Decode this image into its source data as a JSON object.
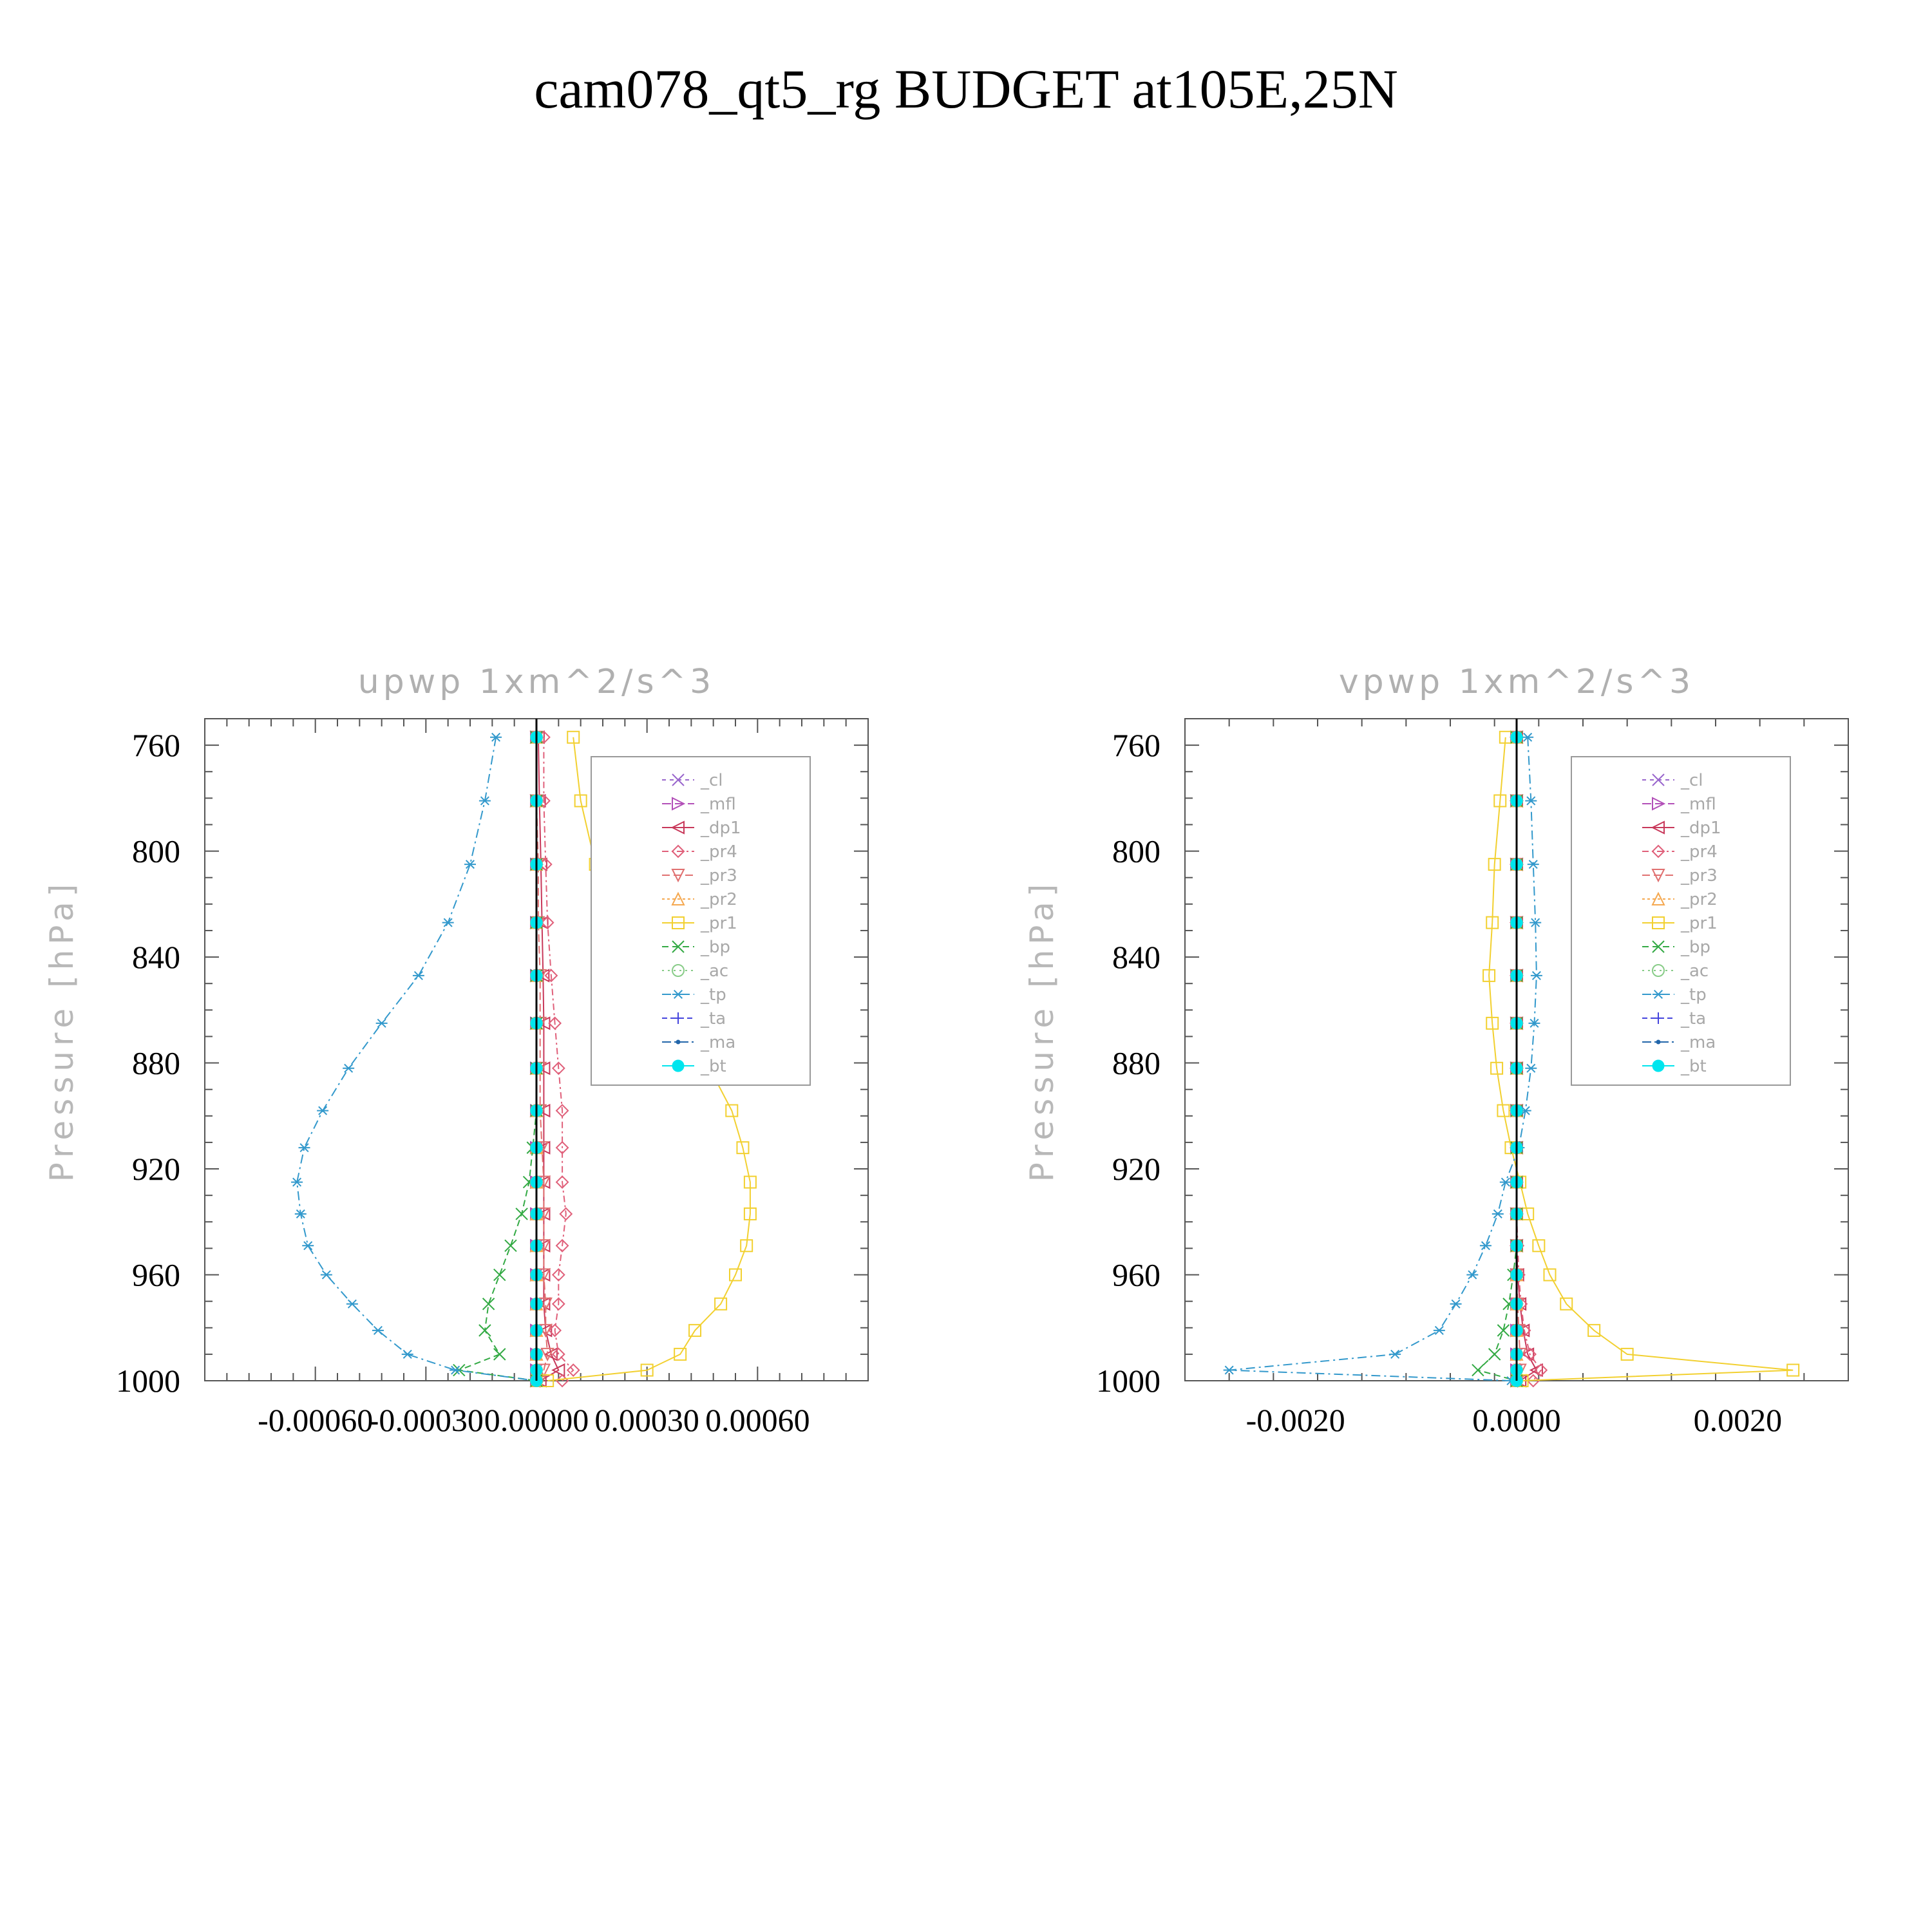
{
  "title": "cam078_qt5_rg  BUDGET at105E,25N",
  "colors": {
    "cl": "#9966cc",
    "mfl": "#b24fb8",
    "dp1": "#c8385a",
    "pr4": "#e0607a",
    "pr3": "#e07070",
    "pr2": "#f5a850",
    "pr1": "#f2d030",
    "bp": "#33aa44",
    "ac": "#88cc88",
    "tp": "#3399cc",
    "ta": "#4444dd",
    "ma": "#2266aa",
    "bt": "#00e5ee"
  },
  "chart_data": [
    {
      "type": "line",
      "title": "upwp   1xm^2/s^3",
      "ylabel": "Pressure  [hPa]",
      "xlabel": "",
      "ylim": [
        1000,
        750
      ],
      "xlim": [
        -0.0009,
        0.0009
      ],
      "yticks": [
        760,
        800,
        840,
        880,
        920,
        960,
        1000
      ],
      "yticklabels": [
        "760",
        "800",
        "840",
        "880",
        "920",
        "960",
        "1000"
      ],
      "xticks": [
        -0.0006,
        -0.0003,
        0.0,
        0.0003,
        0.0006
      ],
      "xticklabels": [
        "-0.00060",
        "-0.00030",
        "0.00000",
        "0.00030",
        "0.00060"
      ],
      "legend_position": "top-right",
      "y": [
        757,
        781,
        805,
        827,
        847,
        865,
        882,
        898,
        912,
        925,
        937,
        949,
        960,
        971,
        981,
        990,
        996,
        1000
      ],
      "series": [
        {
          "name": "_cl",
          "key": "cl",
          "marker": "x",
          "values": [
            0,
            0,
            0,
            0,
            0,
            0,
            0,
            0,
            0,
            0,
            0,
            0,
            0,
            0,
            0,
            0,
            0,
            0
          ]
        },
        {
          "name": "_mfl",
          "key": "mfl",
          "marker": "tri-right",
          "values": [
            0,
            0,
            0,
            0,
            0,
            0,
            0,
            0,
            0,
            0,
            0,
            0,
            0,
            0,
            0,
            0,
            0,
            0
          ]
        },
        {
          "name": "_dp1",
          "key": "dp1",
          "marker": "tri-left",
          "values": [
            5e-06,
            8e-06,
            1.2e-05,
            1.5e-05,
            1.8e-05,
            2e-05,
            2e-05,
            2e-05,
            2e-05,
            2e-05,
            2e-05,
            2e-05,
            2e-05,
            2e-05,
            2.5e-05,
            4e-05,
            6e-05,
            1e-05
          ]
        },
        {
          "name": "_pr4",
          "key": "pr4",
          "marker": "diamond",
          "values": [
            2e-05,
            2e-05,
            2.5e-05,
            3e-05,
            4e-05,
            5e-05,
            6e-05,
            7e-05,
            7e-05,
            7e-05,
            8e-05,
            7e-05,
            6e-05,
            6e-05,
            5e-05,
            6e-05,
            0.0001,
            7e-05
          ]
        },
        {
          "name": "_pr3",
          "key": "pr3",
          "marker": "tri-down",
          "values": [
            0,
            0,
            5e-06,
            5e-06,
            1e-05,
            1e-05,
            1e-05,
            1e-05,
            1.5e-05,
            2e-05,
            2e-05,
            2e-05,
            2e-05,
            2.5e-05,
            2.5e-05,
            3e-05,
            2e-05,
            1e-05
          ]
        },
        {
          "name": "_pr2",
          "key": "pr2",
          "marker": "tri-up",
          "values": [
            0,
            0,
            0,
            0,
            0,
            0,
            0,
            0,
            0,
            0,
            0,
            0,
            0,
            0,
            0,
            0,
            0,
            0
          ]
        },
        {
          "name": "_pr1",
          "key": "pr1",
          "marker": "square",
          "values": [
            0.0001,
            0.00012,
            0.00016,
            0.00023,
            0.0003,
            0.00039,
            0.00047,
            0.00053,
            0.00056,
            0.00058,
            0.00058,
            0.00057,
            0.00054,
            0.0005,
            0.00043,
            0.00039,
            0.0003,
            3e-05
          ]
        },
        {
          "name": "_bp",
          "key": "bp",
          "marker": "x",
          "values": [
            0,
            0,
            0,
            0,
            0,
            0,
            0,
            0,
            -1e-05,
            -2e-05,
            -4e-05,
            -7e-05,
            -0.0001,
            -0.00013,
            -0.00014,
            -0.0001,
            -0.00021,
            0
          ]
        },
        {
          "name": "_ac",
          "key": "ac",
          "marker": "circle",
          "values": [
            0,
            0,
            0,
            0,
            0,
            0,
            0,
            0,
            0,
            0,
            0,
            0,
            0,
            0,
            0,
            0,
            0,
            0
          ]
        },
        {
          "name": "_tp",
          "key": "tp",
          "marker": "star",
          "values": [
            -0.00011,
            -0.00014,
            -0.00018,
            -0.00024,
            -0.00032,
            -0.00042,
            -0.00051,
            -0.00058,
            -0.00063,
            -0.00065,
            -0.00064,
            -0.00062,
            -0.00057,
            -0.0005,
            -0.00043,
            -0.00035,
            -0.00022,
            0
          ]
        },
        {
          "name": "_ta",
          "key": "ta",
          "marker": "plus",
          "values": [
            0,
            0,
            0,
            0,
            0,
            0,
            0,
            0,
            0,
            0,
            0,
            0,
            0,
            0,
            0,
            0,
            0,
            0
          ]
        },
        {
          "name": "_ma",
          "key": "ma",
          "marker": "dot",
          "values": [
            0,
            0,
            0,
            0,
            0,
            0,
            0,
            0,
            0,
            0,
            0,
            0,
            0,
            0,
            0,
            0,
            0,
            0
          ]
        },
        {
          "name": "_bt",
          "key": "bt",
          "marker": "filled-circle",
          "values": [
            0,
            0,
            0,
            0,
            0,
            0,
            0,
            0,
            0,
            0,
            0,
            0,
            0,
            0,
            0,
            0,
            0,
            0
          ]
        }
      ]
    },
    {
      "type": "line",
      "title": "vpwp   1xm^2/s^3",
      "ylabel": "Pressure  [hPa]",
      "xlabel": "",
      "ylim": [
        1000,
        750
      ],
      "xlim": [
        -0.003,
        0.003
      ],
      "yticks": [
        760,
        800,
        840,
        880,
        920,
        960,
        1000
      ],
      "yticklabels": [
        "760",
        "800",
        "840",
        "880",
        "920",
        "960",
        "1000"
      ],
      "xticks": [
        -0.002,
        0.0,
        0.002
      ],
      "xticklabels": [
        "-0.0020",
        "0.0000",
        "0.0020"
      ],
      "legend_position": "top-right",
      "y": [
        757,
        781,
        805,
        827,
        847,
        865,
        882,
        898,
        912,
        925,
        937,
        949,
        960,
        971,
        981,
        990,
        996,
        1000
      ],
      "series": [
        {
          "name": "_cl",
          "key": "cl",
          "marker": "x",
          "values": [
            0,
            0,
            0,
            0,
            0,
            0,
            0,
            0,
            0,
            0,
            0,
            0,
            0,
            0,
            0,
            0,
            0,
            0
          ]
        },
        {
          "name": "_mfl",
          "key": "mfl",
          "marker": "tri-right",
          "values": [
            0,
            0,
            0,
            0,
            0,
            0,
            0,
            0,
            0,
            0,
            0,
            0,
            0,
            0,
            0,
            0,
            0,
            0
          ]
        },
        {
          "name": "_dp1",
          "key": "dp1",
          "marker": "tri-left",
          "values": [
            0,
            0,
            0,
            0,
            0,
            0,
            0,
            0,
            0,
            0,
            0,
            0,
            1e-05,
            3e-05,
            6e-05,
            0.0001,
            0.00018,
            3e-05
          ]
        },
        {
          "name": "_pr4",
          "key": "pr4",
          "marker": "diamond",
          "values": [
            0,
            0,
            0,
            0,
            0,
            0,
            0,
            0,
            0,
            0,
            0,
            1e-05,
            2e-05,
            4e-05,
            7e-05,
            0.00012,
            0.00022,
            0.00015
          ]
        },
        {
          "name": "_pr3",
          "key": "pr3",
          "marker": "tri-down",
          "values": [
            0,
            0,
            0,
            0,
            0,
            0,
            0,
            0,
            0,
            0,
            0,
            0,
            0,
            1e-05,
            2e-05,
            3e-05,
            3e-05,
            1e-05
          ]
        },
        {
          "name": "_pr2",
          "key": "pr2",
          "marker": "tri-up",
          "values": [
            0,
            0,
            0,
            0,
            0,
            0,
            0,
            0,
            0,
            0,
            0,
            0,
            0,
            0,
            0,
            0,
            0,
            0
          ]
        },
        {
          "name": "_pr1",
          "key": "pr1",
          "marker": "square",
          "values": [
            -0.0001,
            -0.00015,
            -0.0002,
            -0.00022,
            -0.00025,
            -0.00022,
            -0.00018,
            -0.00012,
            -5e-05,
            3e-05,
            0.0001,
            0.0002,
            0.0003,
            0.00045,
            0.0007,
            0.001,
            0.0025,
            5e-05
          ]
        },
        {
          "name": "_bp",
          "key": "bp",
          "marker": "x",
          "values": [
            0,
            0,
            0,
            0,
            0,
            0,
            0,
            0,
            0,
            0,
            0,
            0,
            -3e-05,
            -7e-05,
            -0.00012,
            -0.0002,
            -0.00035,
            0
          ]
        },
        {
          "name": "_ac",
          "key": "ac",
          "marker": "circle",
          "values": [
            0,
            0,
            0,
            0,
            0,
            0,
            0,
            0,
            0,
            0,
            0,
            0,
            0,
            0,
            0,
            0,
            0,
            0
          ]
        },
        {
          "name": "_tp",
          "key": "tp",
          "marker": "star",
          "values": [
            0.0001,
            0.00013,
            0.00015,
            0.00017,
            0.00018,
            0.00016,
            0.00013,
            8e-05,
            2e-05,
            -0.0001,
            -0.00017,
            -0.00028,
            -0.0004,
            -0.00055,
            -0.0007,
            -0.0011,
            -0.0026,
            -5e-05
          ]
        },
        {
          "name": "_ta",
          "key": "ta",
          "marker": "plus",
          "values": [
            0,
            0,
            0,
            0,
            0,
            0,
            0,
            0,
            0,
            0,
            0,
            0,
            0,
            0,
            0,
            0,
            0,
            0
          ]
        },
        {
          "name": "_ma",
          "key": "ma",
          "marker": "dot",
          "values": [
            0,
            0,
            0,
            0,
            0,
            0,
            0,
            0,
            0,
            0,
            0,
            0,
            0,
            0,
            0,
            0,
            0,
            0
          ]
        },
        {
          "name": "_bt",
          "key": "bt",
          "marker": "filled-circle",
          "values": [
            0,
            0,
            0,
            0,
            0,
            0,
            0,
            0,
            0,
            0,
            0,
            0,
            0,
            0,
            0,
            0,
            0,
            0
          ]
        }
      ]
    }
  ]
}
